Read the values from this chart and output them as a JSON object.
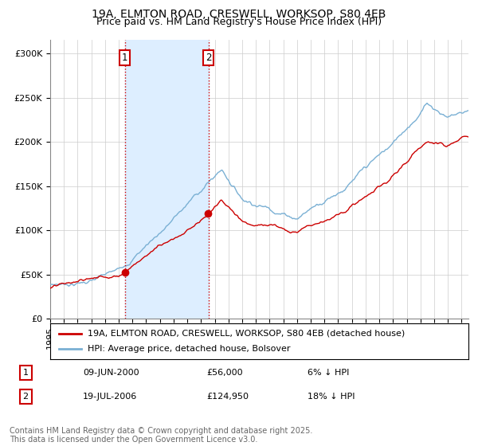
{
  "title_line1": "19A, ELMTON ROAD, CRESWELL, WORKSOP, S80 4EB",
  "title_line2": "Price paid vs. HM Land Registry's House Price Index (HPI)",
  "ylabel_ticks": [
    "£0",
    "£50K",
    "£100K",
    "£150K",
    "£200K",
    "£250K",
    "£300K"
  ],
  "ytick_values": [
    0,
    50000,
    100000,
    150000,
    200000,
    250000,
    300000
  ],
  "ylim": [
    0,
    315000
  ],
  "xlim_start": 1995.0,
  "xlim_end": 2025.5,
  "transaction1_date": 2000.44,
  "transaction1_price": 56000,
  "transaction2_date": 2006.54,
  "transaction2_price": 124950,
  "red_line_color": "#cc0000",
  "blue_line_color": "#7ab0d4",
  "vline_color": "#cc0000",
  "shade_color": "#ddeeff",
  "grid_color": "#cccccc",
  "background_color": "#ffffff",
  "legend_label_red": "19A, ELMTON ROAD, CRESWELL, WORKSOP, S80 4EB (detached house)",
  "legend_label_blue": "HPI: Average price, detached house, Bolsover",
  "table_row1": [
    "1",
    "09-JUN-2000",
    "£56,000",
    "6% ↓ HPI"
  ],
  "table_row2": [
    "2",
    "19-JUL-2006",
    "£124,950",
    "18% ↓ HPI"
  ],
  "footnote": "Contains HM Land Registry data © Crown copyright and database right 2025.\nThis data is licensed under the Open Government Licence v3.0.",
  "title_fontsize": 10,
  "subtitle_fontsize": 9,
  "tick_fontsize": 8,
  "legend_fontsize": 8,
  "table_fontsize": 8,
  "footnote_fontsize": 7
}
